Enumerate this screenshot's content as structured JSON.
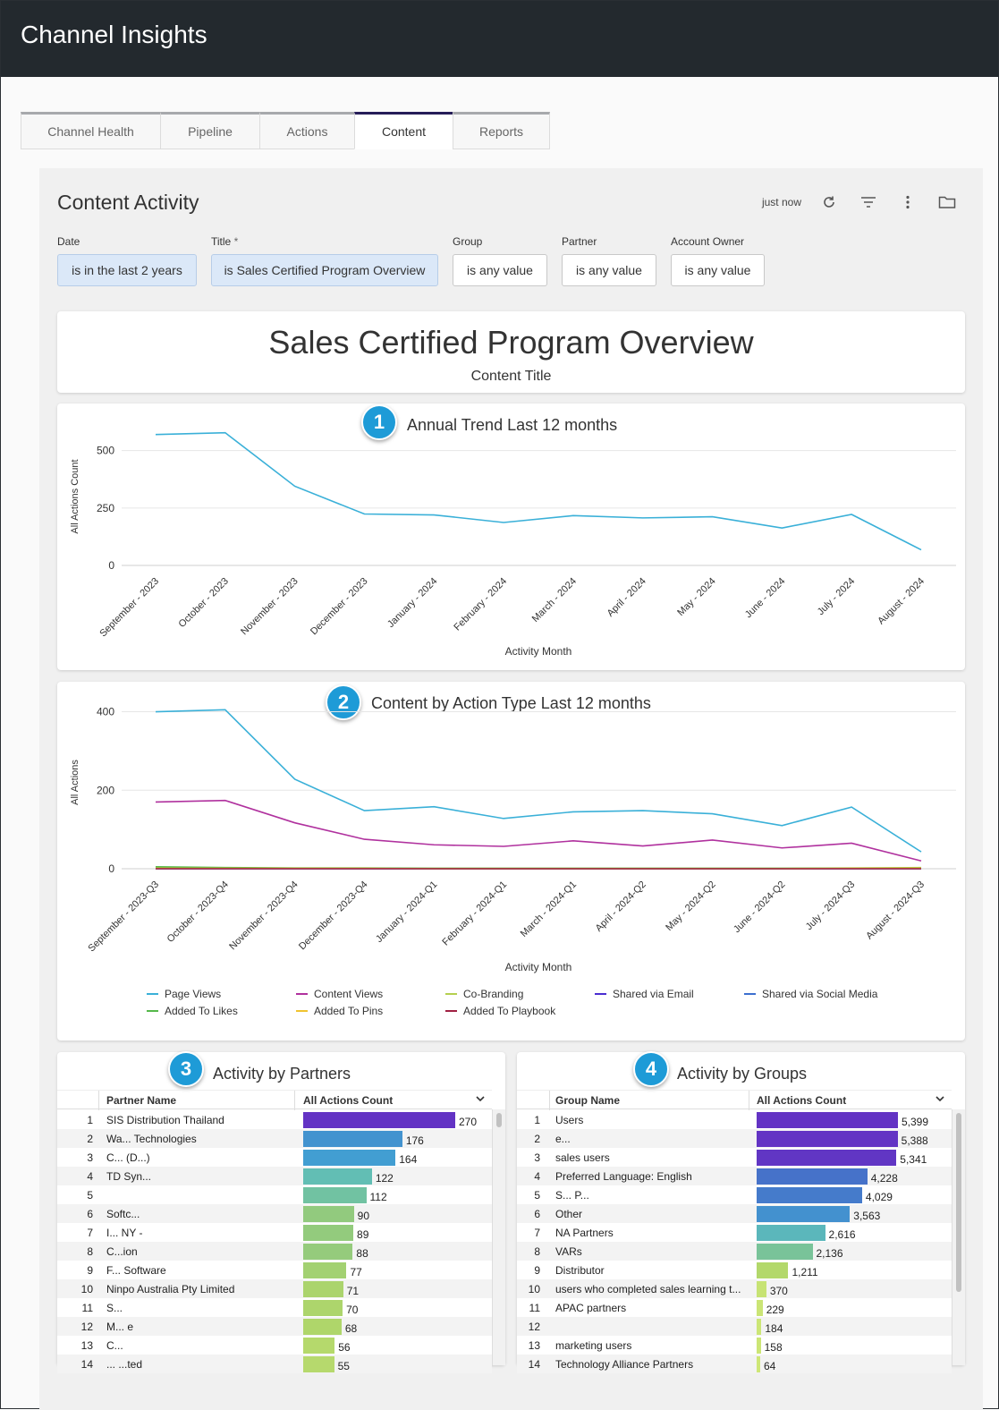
{
  "app": {
    "title": "Channel Insights"
  },
  "tabs": [
    {
      "label": "Channel Health",
      "active": false
    },
    {
      "label": "Pipeline",
      "active": false
    },
    {
      "label": "Actions",
      "active": false
    },
    {
      "label": "Content",
      "active": true
    },
    {
      "label": "Reports",
      "active": false
    }
  ],
  "dashboard": {
    "title": "Content Activity",
    "last_updated": "just now",
    "filters": [
      {
        "label": "Date",
        "value": "is in the last 2 years",
        "selected": true
      },
      {
        "label": "Title",
        "required_mark": "*",
        "value": "is Sales Certified Program Overview",
        "selected": true
      },
      {
        "label": "Group",
        "value": "is any value",
        "selected": false
      },
      {
        "label": "Partner",
        "value": "is any value",
        "selected": false
      },
      {
        "label": "Account Owner",
        "value": "is any value",
        "selected": false
      }
    ]
  },
  "header_card": {
    "title": "Sales Certified Program Overview",
    "subtitle": "Content Title"
  },
  "badges": [
    "1",
    "2",
    "3",
    "4"
  ],
  "colors": {
    "line_blue": "#3ab0d8",
    "line_magenta": "#b0319e",
    "line_olive": "#b5cf4f",
    "badge": "#1e9bd7",
    "topbar": "#23292e"
  },
  "chart_data": [
    {
      "type": "line",
      "title": "Annual Trend Last 12 months",
      "xlabel": "Activity Month",
      "ylabel": "All Actions Count",
      "ylim": [
        0,
        600
      ],
      "yticks": [
        0,
        250,
        500
      ],
      "categories": [
        "September - 2023",
        "October - 2023",
        "November - 2023",
        "December - 2023",
        "January - 2024",
        "February - 2024",
        "March - 2024",
        "April - 2024",
        "May - 2024",
        "June - 2024",
        "July - 2024",
        "August - 2024"
      ],
      "series": [
        {
          "name": "All Actions Count",
          "color": "#3ab0d8",
          "values": [
            570,
            578,
            345,
            224,
            220,
            187,
            217,
            207,
            212,
            163,
            222,
            68
          ]
        }
      ]
    },
    {
      "type": "line",
      "title": "Content by Action Type Last 12 months",
      "xlabel": "Activity Month",
      "ylabel": "All Actions",
      "ylim": [
        0,
        440
      ],
      "yticks": [
        0,
        200,
        400
      ],
      "categories": [
        "September - 2023-Q3",
        "October - 2023-Q4",
        "November - 2023-Q4",
        "December - 2023-Q4",
        "January - 2024-Q1",
        "February - 2024-Q1",
        "March - 2024-Q1",
        "April - 2024-Q2",
        "May - 2024-Q2",
        "June - 2024-Q2",
        "July - 2024-Q3",
        "August - 2024-Q3"
      ],
      "series": [
        {
          "name": "Page Views",
          "color": "#3ab0d8",
          "values": [
            400,
            405,
            228,
            148,
            158,
            128,
            145,
            148,
            140,
            110,
            157,
            43
          ]
        },
        {
          "name": "Content Views",
          "color": "#b0319e",
          "values": [
            170,
            174,
            117,
            75,
            61,
            57,
            71,
            58,
            73,
            53,
            65,
            20
          ]
        },
        {
          "name": "Co-Branding",
          "color": "#b5cf4f",
          "values": [
            2,
            2,
            1,
            1,
            1,
            1,
            1,
            1,
            1,
            1,
            2,
            3
          ]
        },
        {
          "name": "Shared via Email",
          "color": "#4a2ed1",
          "values": [
            0,
            0,
            0,
            0,
            0,
            0,
            0,
            0,
            0,
            0,
            0,
            0
          ]
        },
        {
          "name": "Shared via Social Media",
          "color": "#3c6fcf",
          "values": [
            0,
            0,
            0,
            0,
            0,
            0,
            0,
            0,
            0,
            0,
            0,
            0
          ]
        },
        {
          "name": "Added To Likes",
          "color": "#55b84a",
          "values": [
            5,
            3,
            2,
            2,
            1,
            1,
            1,
            1,
            1,
            1,
            1,
            1
          ]
        },
        {
          "name": "Added To Pins",
          "color": "#f0c330",
          "values": [
            1,
            1,
            1,
            1,
            0,
            0,
            0,
            0,
            0,
            0,
            1,
            1
          ]
        },
        {
          "name": "Added To Playbook",
          "color": "#a02042",
          "values": [
            0,
            0,
            0,
            0,
            0,
            0,
            0,
            0,
            0,
            0,
            0,
            0
          ]
        }
      ]
    },
    {
      "type": "table",
      "title": "Activity by Partners",
      "columns": [
        "Partner Name",
        "All Actions Count"
      ],
      "max": 270,
      "rows": [
        {
          "n": "1",
          "name": "SIS Distribution Thailand",
          "value": 270,
          "label": "270"
        },
        {
          "n": "2",
          "name": "Wa... Technologies",
          "value": 176,
          "label": "176"
        },
        {
          "n": "3",
          "name": "C... (D...)",
          "value": 164,
          "label": "164"
        },
        {
          "n": "4",
          "name": "TD Syn...",
          "value": 122,
          "label": "122"
        },
        {
          "n": "5",
          "name": "",
          "value": 112,
          "label": "112"
        },
        {
          "n": "6",
          "name": "Softc...",
          "value": 90,
          "label": "90"
        },
        {
          "n": "7",
          "name": "I... NY -",
          "value": 89,
          "label": "89"
        },
        {
          "n": "8",
          "name": "C...ion",
          "value": 88,
          "label": "88"
        },
        {
          "n": "9",
          "name": "F... Software",
          "value": 77,
          "label": "77"
        },
        {
          "n": "10",
          "name": "Ninpo Australia Pty Limited",
          "value": 71,
          "label": "71"
        },
        {
          "n": "11",
          "name": "S...",
          "value": 70,
          "label": "70"
        },
        {
          "n": "12",
          "name": "M... e",
          "value": 68,
          "label": "68"
        },
        {
          "n": "13",
          "name": "C...",
          "value": 56,
          "label": "56"
        },
        {
          "n": "14",
          "name": "... ...ted",
          "value": 55,
          "label": "55"
        }
      ]
    },
    {
      "type": "table",
      "title": "Activity by Groups",
      "columns": [
        "Group Name",
        "All Actions Count"
      ],
      "max": 5399,
      "rows": [
        {
          "n": "1",
          "name": "Users",
          "value": 5399,
          "label": "5,399"
        },
        {
          "n": "2",
          "name": "e...",
          "value": 5388,
          "label": "5,388"
        },
        {
          "n": "3",
          "name": "sales users",
          "value": 5341,
          "label": "5,341"
        },
        {
          "n": "4",
          "name": "Preferred Language: English",
          "value": 4228,
          "label": "4,228"
        },
        {
          "n": "5",
          "name": "S... P...",
          "value": 4029,
          "label": "4,029"
        },
        {
          "n": "6",
          "name": "Other",
          "value": 3563,
          "label": "3,563"
        },
        {
          "n": "7",
          "name": "NA Partners",
          "value": 2616,
          "label": "2,616"
        },
        {
          "n": "8",
          "name": "VARs",
          "value": 2136,
          "label": "2,136"
        },
        {
          "n": "9",
          "name": "Distributor",
          "value": 1211,
          "label": "1,211"
        },
        {
          "n": "10",
          "name": "users who completed sales learning t...",
          "value": 370,
          "label": "370"
        },
        {
          "n": "11",
          "name": "APAC partners",
          "value": 229,
          "label": "229"
        },
        {
          "n": "12",
          "name": "",
          "value": 184,
          "label": "184"
        },
        {
          "n": "13",
          "name": "marketing users",
          "value": 158,
          "label": "158"
        },
        {
          "n": "14",
          "name": "Technology Alliance Partners",
          "value": 64,
          "label": "64"
        }
      ]
    }
  ]
}
